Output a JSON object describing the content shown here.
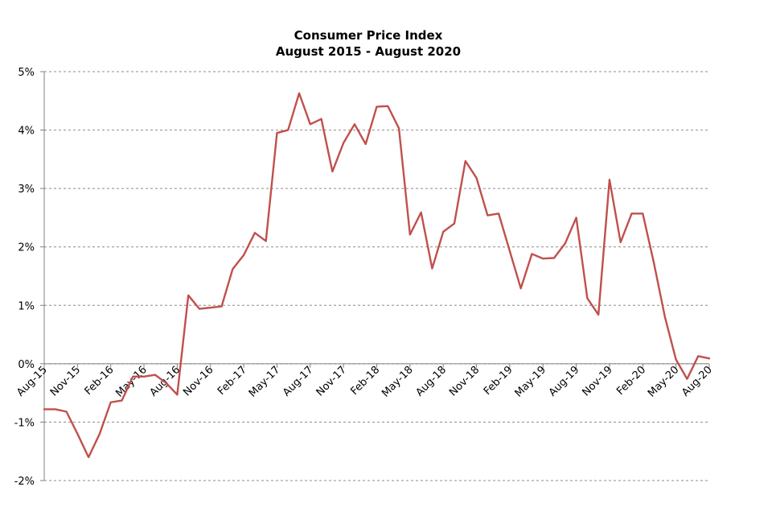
{
  "chart_data": {
    "type": "line",
    "title": "Consumer Price Index",
    "subtitle": "August 2015 - August 2020",
    "xlabel": "",
    "ylabel": "",
    "ylim": [
      -2,
      5
    ],
    "y_ticks": [
      -2,
      -1,
      0,
      1,
      2,
      3,
      4,
      5
    ],
    "y_tick_labels": [
      "-2%",
      "-1%",
      "0%",
      "1%",
      "2%",
      "3%",
      "4%",
      "5%"
    ],
    "x_tick_labels": [
      "Aug-15",
      "Nov-15",
      "Feb-16",
      "May-16",
      "Aug-16",
      "Nov-16",
      "Feb-17",
      "May-17",
      "Aug-17",
      "Nov-17",
      "Feb-18",
      "May-18",
      "Aug-18",
      "Nov-18",
      "Feb-19",
      "May-19",
      "Aug-19",
      "Nov-19",
      "Feb-20",
      "May-20",
      "Aug-20"
    ],
    "grid": true,
    "line_color": "#c0504d",
    "grid_color": "#8c8c8c",
    "series": [
      {
        "x": [
          "Aug-15",
          "Sep-15",
          "Oct-15",
          "Nov-15",
          "Dec-15",
          "Jan-16",
          "Feb-16",
          "Mar-16",
          "Apr-16",
          "May-16",
          "Jun-16",
          "Jul-16",
          "Aug-16",
          "Sep-16",
          "Oct-16",
          "Nov-16",
          "Dec-16",
          "Jan-17",
          "Feb-17",
          "Mar-17",
          "Apr-17",
          "May-17",
          "Jun-17",
          "Jul-17",
          "Aug-17",
          "Sep-17",
          "Oct-17",
          "Nov-17",
          "Dec-17",
          "Jan-18",
          "Feb-18",
          "Mar-18",
          "Apr-18",
          "May-18",
          "Jun-18",
          "Jul-18",
          "Aug-18",
          "Sep-18",
          "Oct-18",
          "Nov-18",
          "Dec-18",
          "Jan-19",
          "Feb-19",
          "Mar-19",
          "Apr-19",
          "May-19",
          "Jun-19",
          "Jul-19",
          "Aug-19",
          "Sep-19",
          "Oct-19",
          "Nov-19",
          "Dec-19",
          "Jan-20",
          "Feb-20",
          "Mar-20",
          "Apr-20",
          "May-20",
          "Jun-20",
          "Jul-20",
          "Aug-20"
        ],
        "values": [
          -0.78,
          -0.78,
          -0.82,
          -1.2,
          -1.6,
          -1.2,
          -0.66,
          -0.63,
          -0.22,
          -0.22,
          -0.19,
          -0.33,
          -0.53,
          1.17,
          0.94,
          0.96,
          0.98,
          1.62,
          1.86,
          2.24,
          2.1,
          3.95,
          4.0,
          4.63,
          4.1,
          4.19,
          3.29,
          3.78,
          4.1,
          3.76,
          4.4,
          4.41,
          4.03,
          2.21,
          2.59,
          1.63,
          2.26,
          2.4,
          3.47,
          3.18,
          2.54,
          2.57,
          1.93,
          1.29,
          1.88,
          1.8,
          1.81,
          2.06,
          2.5,
          1.12,
          0.84,
          3.15,
          2.08,
          2.57,
          2.57,
          1.73,
          0.8,
          0.07,
          -0.26,
          0.13,
          0.09
        ]
      }
    ]
  }
}
